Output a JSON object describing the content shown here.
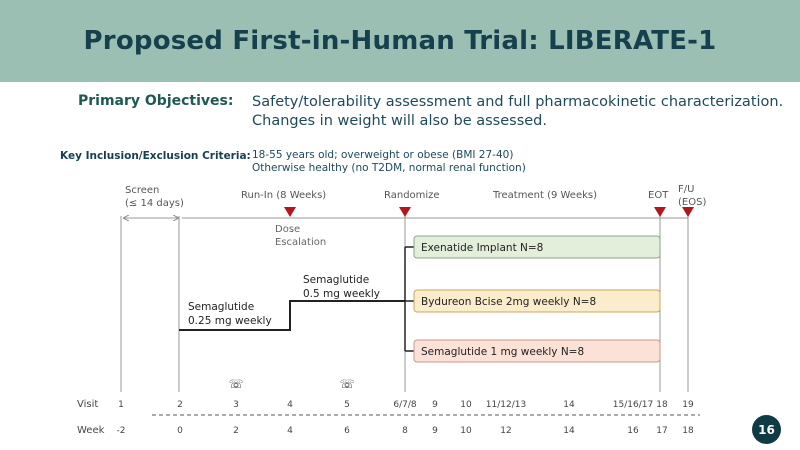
{
  "title": "Proposed First-in-Human Trial: LIBERATE-1",
  "objectives": {
    "label": "Primary Objectives:",
    "lines": [
      "Safety/tolerability assessment and full pharmacokinetic characterization.",
      "Changes in weight will also be assessed."
    ]
  },
  "criteria": {
    "label": "Key Inclusion/Exclusion Criteria:",
    "lines": [
      "18-55 years old; overweight or obese (BMI 27-40)",
      "Otherwise healthy (no T2DM, normal renal function)"
    ]
  },
  "diagram": {
    "phases": {
      "screen": [
        "Screen",
        "(≤ 14 days)"
      ],
      "runin": "Run-In (8 Weeks)",
      "randomize": "Randomize",
      "treatment": "Treatment (9 Weeks)",
      "eot": "EOT",
      "fu": [
        "F/U",
        "(EOS)"
      ]
    },
    "dose_escalation": [
      "Dose",
      "Escalation"
    ],
    "step1": [
      "Semaglutide",
      "0.25 mg weekly"
    ],
    "step2": [
      "Semaglutide",
      "0.5 mg weekly"
    ],
    "arms": [
      {
        "label": "Exenatide Implant  N=8",
        "color": "#e3eedb",
        "border": "#8aa98a"
      },
      {
        "label": "Bydureon Bcise 2mg weekly N=8",
        "color": "#fbeccb",
        "border": "#c9a85a"
      },
      {
        "label": "Semaglutide 1 mg weekly N=8",
        "color": "#fbe1d6",
        "border": "#c79a8a"
      }
    ],
    "visit_label": "Visit",
    "week_label": "Week",
    "visits": [
      "1",
      "2",
      "3",
      "4",
      "5",
      "6/7/8",
      "9",
      "10",
      "11/12/13",
      "14",
      "15/16/17",
      "18",
      "19"
    ],
    "weeks": [
      "-2",
      "0",
      "2",
      "4",
      "6",
      "8",
      "9",
      "10",
      "12",
      "14",
      "16",
      "17",
      "18"
    ],
    "phone_visits": [
      "3",
      "5"
    ],
    "colors": {
      "marker": "#b3161d",
      "line": "#222222",
      "grid": "#999999"
    }
  },
  "page_number": "16"
}
